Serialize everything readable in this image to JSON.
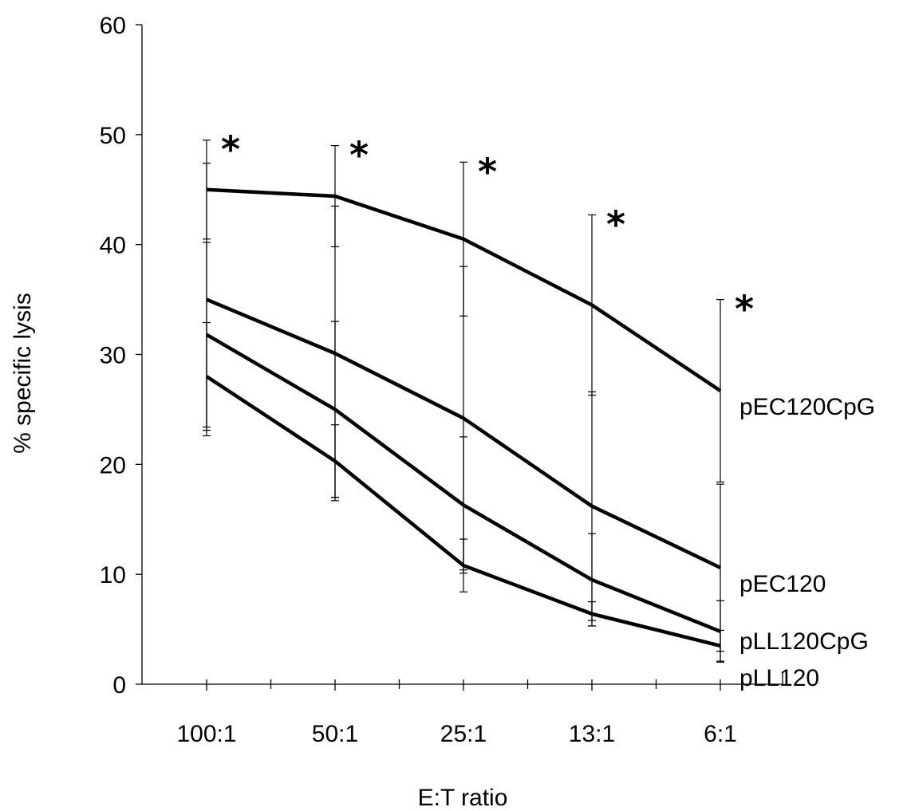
{
  "chart_data": {
    "type": "line",
    "xlabel": "E:T ratio",
    "ylabel": "% specific lysis",
    "categories": [
      "100:1",
      "50:1",
      "25:1",
      "13:1",
      "6:1"
    ],
    "ylim": [
      0,
      60
    ],
    "yticks": [
      0,
      10,
      20,
      30,
      40,
      50,
      60
    ],
    "grid": false,
    "legend": "labels at line ends (right)",
    "series": [
      {
        "name": "pEC120CpG",
        "values": [
          45,
          44.4,
          40.5,
          34.5,
          26.7
        ],
        "errors": [
          4.5,
          4.6,
          7.0,
          8.2,
          8.3
        ],
        "significance": [
          "*",
          "*",
          "*",
          "*",
          "*"
        ]
      },
      {
        "name": "pEC120",
        "values": [
          35,
          30.1,
          24.2,
          16.2,
          10.6
        ],
        "errors": [
          12.4,
          13.4,
          13.8,
          10.4,
          7.6
        ]
      },
      {
        "name": "pLL120CpG",
        "values": [
          31.8,
          25.0,
          16.3,
          9.5,
          4.8
        ],
        "errors": [
          8.4,
          8.0,
          6.2,
          4.2,
          2.8
        ]
      },
      {
        "name": "pLL120",
        "values": [
          28,
          20.3,
          10.8,
          6.4,
          3.5
        ],
        "errors": [
          4.9,
          3.3,
          2.4,
          1.1,
          1.4
        ]
      }
    ],
    "line_color": "#000000"
  }
}
